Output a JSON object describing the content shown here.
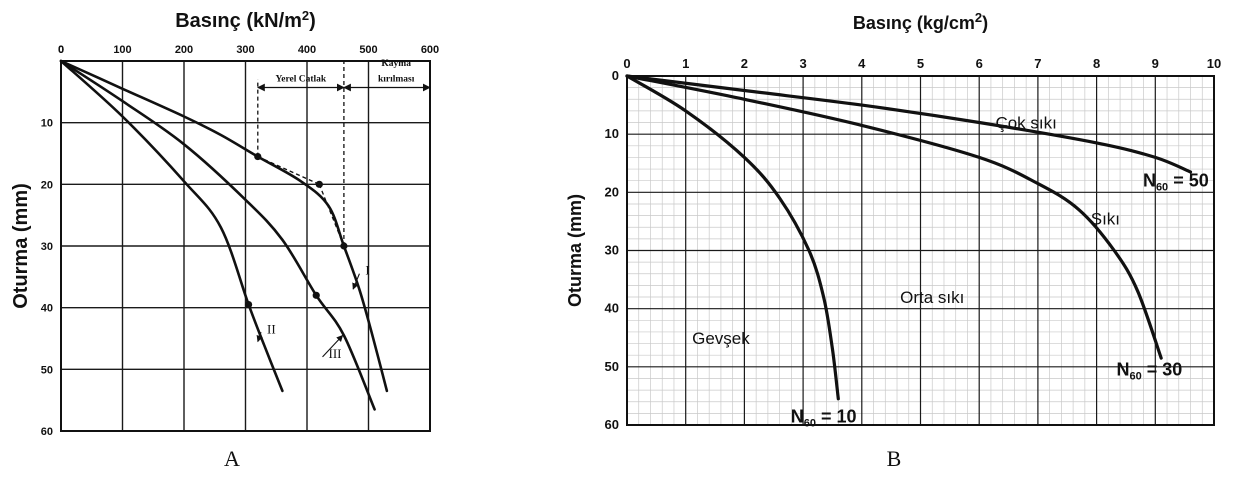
{
  "chart_data": [
    {
      "type": "line",
      "panel_label": "A",
      "xlabel": "Basınç",
      "xunit_base": "(kN/m",
      "xunit_sup": "2",
      "xunit_close": ")",
      "ylabel": "Oturma (mm)",
      "xlim": [
        0,
        600
      ],
      "ylim": [
        0,
        60
      ],
      "y_inverted": true,
      "x_axis_position": "top",
      "grid": true,
      "x_ticks": [
        "0",
        "100",
        "200",
        "300",
        "400",
        "500",
        "600"
      ],
      "y_ticks": [
        "10",
        "20",
        "30",
        "40",
        "50",
        "60"
      ],
      "annotations": [
        {
          "text": "Yerel Catlak",
          "x": 390,
          "y": 4.3
        },
        {
          "text": "Kayma",
          "x": 545,
          "y": 1.8
        },
        {
          "text": "kırılması",
          "x": 545,
          "y": 4.3
        }
      ],
      "series": [
        {
          "name": "I",
          "points": [
            [
              0,
              0
            ],
            [
              100,
              4.5
            ],
            [
              200,
              9
            ],
            [
              260,
              12
            ],
            [
              320,
              15.5
            ],
            [
              390,
              19.5
            ],
            [
              435,
              23.5
            ],
            [
              460,
              30
            ],
            [
              485,
              37
            ],
            [
              505,
              44
            ],
            [
              530,
              53.5
            ]
          ]
        },
        {
          "name": "III",
          "points": [
            [
              0,
              0
            ],
            [
              100,
              6.5
            ],
            [
              200,
              13.5
            ],
            [
              300,
              22.5
            ],
            [
              360,
              29
            ],
            [
              415,
              38
            ],
            [
              460,
              44.5
            ],
            [
              510,
              56.5
            ]
          ]
        },
        {
          "name": "II",
          "points": [
            [
              0,
              0
            ],
            [
              100,
              9
            ],
            [
              200,
              19.5
            ],
            [
              260,
              27
            ],
            [
              305,
              39.5
            ],
            [
              330,
              46
            ],
            [
              360,
              53.5
            ]
          ]
        }
      ],
      "points_marked": [
        [
          320,
          15.5
        ],
        [
          420,
          20
        ],
        [
          460,
          30
        ],
        [
          305,
          39.5
        ],
        [
          415,
          38
        ]
      ],
      "dashed": [
        [
          [
            320,
            15.5
          ],
          [
            420,
            20
          ]
        ],
        [
          [
            420,
            20
          ],
          [
            460,
            30
          ]
        ],
        [
          [
            320,
            15.5
          ],
          [
            320,
            3
          ]
        ],
        [
          [
            460,
            30
          ],
          [
            460,
            0
          ]
        ]
      ],
      "series_labels": [
        {
          "text": "I",
          "x": 495,
          "y": 34,
          "arrow_to": [
            475,
            37
          ]
        },
        {
          "text": "II",
          "x": 335,
          "y": 43.5,
          "arrow_to": [
            320,
            45.5
          ]
        },
        {
          "text": "III",
          "x": 435,
          "y": 47.5,
          "arrow_to": [
            458,
            44.5
          ]
        }
      ]
    },
    {
      "type": "line",
      "panel_label": "B",
      "xlabel": "Basınç",
      "xunit_base": "(kg/cm",
      "xunit_sup": "2",
      "xunit_close": ")",
      "ylabel": "Oturma (mm)",
      "xlim": [
        0,
        10
      ],
      "ylim": [
        0,
        60
      ],
      "y_inverted": true,
      "x_axis_position": "top",
      "grid": true,
      "x_ticks": [
        "0",
        "1",
        "2",
        "3",
        "4",
        "5",
        "6",
        "7",
        "8",
        "9",
        "10"
      ],
      "y_ticks": [
        "0",
        "10",
        "20",
        "30",
        "40",
        "50",
        "60"
      ],
      "regions": [
        {
          "text": "Çok sıkı",
          "x": 6.8,
          "y": 8
        },
        {
          "text": "Sıkı",
          "x": 8.15,
          "y": 24.5
        },
        {
          "text": "Orta sıkı",
          "x": 5.2,
          "y": 38
        },
        {
          "text": "Gevşek",
          "x": 1.6,
          "y": 45
        }
      ],
      "series": [
        {
          "name": "N60 = 50",
          "label_main": "N",
          "label_sub": "60",
          "label_rest": " = 50",
          "label_pos": [
            9.35,
            18
          ],
          "points": [
            [
              0,
              0
            ],
            [
              2,
              2.5
            ],
            [
              4,
              5
            ],
            [
              6,
              8
            ],
            [
              8,
              11.5
            ],
            [
              9,
              14
            ],
            [
              9.6,
              16.5
            ]
          ]
        },
        {
          "name": "N60 = 30",
          "label_main": "N",
          "label_sub": "60",
          "label_rest": " = 30",
          "label_pos": [
            8.9,
            50.5
          ],
          "points": [
            [
              0,
              0
            ],
            [
              2,
              4
            ],
            [
              4,
              8.5
            ],
            [
              6,
              14
            ],
            [
              7,
              18.5
            ],
            [
              7.7,
              23
            ],
            [
              8.3,
              30
            ],
            [
              8.7,
              37
            ],
            [
              9.1,
              48.5
            ]
          ]
        },
        {
          "name": "N60 = 10",
          "label_main": "N",
          "label_sub": "60",
          "label_rest": " = 10",
          "label_pos": [
            3.35,
            58.5
          ],
          "points": [
            [
              0,
              0
            ],
            [
              1,
              6
            ],
            [
              2,
              14
            ],
            [
              2.6,
              21
            ],
            [
              3.1,
              30
            ],
            [
              3.35,
              38
            ],
            [
              3.5,
              47
            ],
            [
              3.6,
              55.5
            ]
          ]
        }
      ]
    }
  ]
}
